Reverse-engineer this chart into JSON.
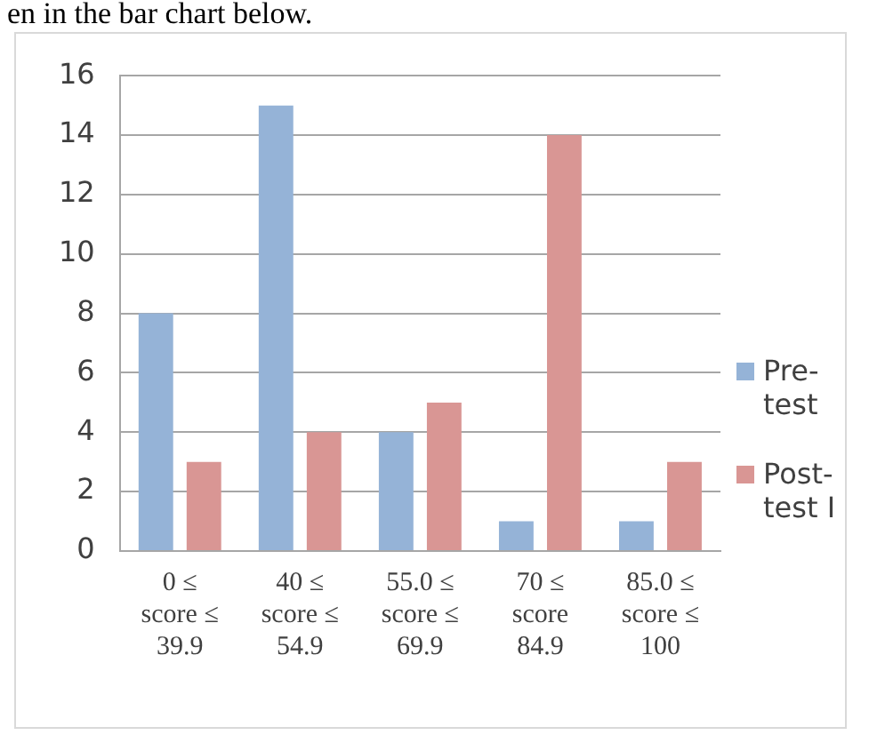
{
  "chart_data": {
    "type": "bar",
    "categories": [
      "0 ≤ score ≤ 39.9",
      "40 ≤ score ≤ 54.9",
      "55.0 ≤ score ≤ 69.9",
      "70 ≤ score 84.9",
      "85.0 ≤ score ≤ 100"
    ],
    "series": [
      {
        "name": "Pre-test",
        "color": "#95b3d7",
        "values": [
          8,
          15,
          4,
          1,
          1
        ]
      },
      {
        "name": "Post-test I",
        "color": "#d99694",
        "values": [
          3,
          4,
          5,
          14,
          3
        ]
      }
    ],
    "ylim": [
      0,
      16
    ],
    "yticks": [
      0,
      2,
      4,
      6,
      8,
      10,
      12,
      14,
      16
    ],
    "grid": "y",
    "legend": "right",
    "annotations": [
      "en in the bar chart below."
    ]
  }
}
